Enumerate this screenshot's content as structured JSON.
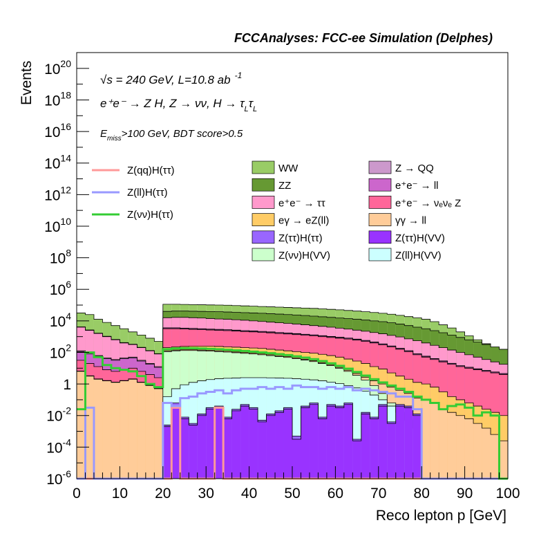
{
  "chart_data": {
    "type": "area",
    "title": "FCCAnalyses: FCC-ee Simulation (Delphes)",
    "xlabel": "Reco lepton p [GeV]",
    "ylabel": "Events",
    "x_range": [
      0,
      100
    ],
    "y_range": [
      1e-06,
      1e+21
    ],
    "y_scale": "log",
    "bin_width": 2,
    "x_ticks": [
      "0",
      "10",
      "20",
      "30",
      "40",
      "50",
      "60",
      "70",
      "80",
      "90",
      "100"
    ],
    "y_ticks": [
      {
        "mant": "10",
        "exp": "-6",
        "value": 1e-06
      },
      {
        "mant": "10",
        "exp": "-4",
        "value": 0.0001
      },
      {
        "mant": "10",
        "exp": "-2",
        "value": 0.01
      },
      {
        "mant": "1",
        "exp": "",
        "value": 1
      },
      {
        "mant": "10",
        "exp": "2",
        "value": 100.0
      },
      {
        "mant": "10",
        "exp": "4",
        "value": 10000.0
      },
      {
        "mant": "10",
        "exp": "6",
        "value": 1000000.0
      },
      {
        "mant": "10",
        "exp": "8",
        "value": 100000000.0
      },
      {
        "mant": "10",
        "exp": "10",
        "value": 10000000000.0
      },
      {
        "mant": "10",
        "exp": "12",
        "value": 1000000000000.0
      },
      {
        "mant": "10",
        "exp": "14",
        "value": 100000000000000.0
      },
      {
        "mant": "10",
        "exp": "16",
        "value": 1e+16
      },
      {
        "mant": "10",
        "exp": "18",
        "value": 1e+18
      },
      {
        "mant": "10",
        "exp": "20",
        "value": 1e+20
      }
    ],
    "annotations": {
      "energy": "√s = 240 GeV, L=10.8 ab",
      "energy_sup": "-1",
      "process": "e⁺e⁻ → Z H, Z → νν, H → τ",
      "process_sub1": "L",
      "process_tau": "τ",
      "process_sub2": "L",
      "cut_pre": "E",
      "cut_sub": "miss",
      "cut_post": ">100 GeV, BDT score>0.5"
    },
    "legend_lines": [
      {
        "name": "Z(qq)H(ττ)",
        "color": "#ff9999"
      },
      {
        "name": "Z(ll)H(ττ)",
        "color": "#9999ff"
      },
      {
        "name": "Z(νν)H(ττ)",
        "color": "#33cc33"
      }
    ],
    "legend_fills": [
      {
        "name": "WW",
        "color": "#99cc66"
      },
      {
        "name": "Z → QQ",
        "color": "#cc99cc"
      },
      {
        "name": "ZZ",
        "color": "#669933"
      },
      {
        "name": "e⁺e⁻ → ll",
        "color": "#cc66cc"
      },
      {
        "name": "e⁺e⁻ → ττ",
        "color": "#ff99cc"
      },
      {
        "name": "e⁺e⁻ → νₑνₑ Z",
        "color": "#ff6699"
      },
      {
        "name": "eγ → eZ(ll)",
        "color": "#ffcc66"
      },
      {
        "name": "γγ → ll",
        "color": "#ffcc99"
      },
      {
        "name": "Z(ττ)H(ττ)",
        "color": "#9966ff"
      },
      {
        "name": "Z(ττ)H(VV)",
        "color": "#9933ff"
      },
      {
        "name": "Z(νν)H(VV)",
        "color": "#ccffcc"
      },
      {
        "name": "Z(ll)H(VV)",
        "color": "#ccffff"
      }
    ],
    "stack_boundaries_log10": [
      {
        "name": "Z(ττ)H(VV)",
        "color": "#9933ff",
        "values": [
          -6,
          -6,
          -6,
          -6,
          -6,
          -6,
          -6,
          -6,
          -6,
          -6,
          -2.7,
          -1.4,
          -2.2,
          -2.6,
          -2,
          -1.6,
          -1.5,
          -2.2,
          -1.7,
          -1.4,
          -1.6,
          -2.4,
          -2,
          -1.8,
          -1.6,
          -3.5,
          -1.5,
          -1.3,
          -2.2,
          -1.4,
          -1.5,
          -1.3,
          -3.6,
          -1.9,
          -2.2,
          -1.4,
          -2.5,
          -1.4,
          -1.5,
          -2,
          -6,
          -6,
          -6,
          -6,
          -6,
          -6,
          -6,
          -6,
          -6,
          -6
        ]
      },
      {
        "name": "Z(ττ)H(ττ)",
        "color": "#9966ff",
        "values": [
          -6,
          -6,
          -6,
          -6,
          -6,
          -6,
          -6,
          -6,
          -6,
          -6,
          -2.6,
          -1.2,
          -2.1,
          -2.5,
          -1.9,
          -1.5,
          -1.4,
          -2.1,
          -1.6,
          -1.3,
          -1.5,
          -2.3,
          -1.9,
          -1.7,
          -1.5,
          -3.3,
          -1.4,
          -1.2,
          -2.1,
          -1.3,
          -1.4,
          -1.2,
          -3.5,
          -1.8,
          -2.1,
          -1.3,
          -2.4,
          -1.3,
          -1.4,
          -1.9,
          -6,
          -6,
          -6,
          -6,
          -6,
          -6,
          -6,
          -6,
          -6,
          -6
        ]
      },
      {
        "name": "Z(ll)H(VV)",
        "color": "#ccffff",
        "values": [
          -6,
          -6,
          -6,
          -6,
          -6,
          -6,
          -6,
          -6,
          -6,
          -6,
          -0.8,
          -0.3,
          -0.05,
          0.1,
          0.2,
          0.28,
          0.33,
          0.36,
          0.38,
          0.4,
          0.4,
          0.4,
          0.39,
          0.38,
          0.36,
          0.33,
          0.3,
          0.26,
          0.2,
          0.12,
          0.02,
          -0.1,
          -0.25,
          -0.45,
          -0.7,
          -1,
          -1.4,
          -1.8,
          -2.3,
          -2.8,
          -6,
          -6,
          -6,
          -6,
          -6,
          -6,
          -6,
          -6,
          -6,
          -6
        ]
      },
      {
        "name": "Z(νν)H(VV)",
        "color": "#ccffcc",
        "values": [
          -6,
          -6,
          -6,
          -6,
          -6,
          -6,
          -6,
          -6,
          -6,
          -6,
          2.05,
          2.1,
          2.12,
          2.12,
          2.1,
          2.08,
          2.05,
          2.02,
          1.98,
          1.94,
          1.9,
          1.85,
          1.8,
          1.74,
          1.68,
          1.6,
          1.52,
          1.42,
          1.3,
          1.16,
          1,
          0.8,
          0.55,
          0.25,
          -0.1,
          -0.6,
          -1.2,
          -1.9,
          -2.5,
          -3,
          -6,
          -6,
          -6,
          -6,
          -6,
          -6,
          -6,
          -6,
          -6,
          -6
        ]
      },
      {
        "name": "γγ → ll",
        "color": "#ffcc99",
        "values": [
          0.8,
          0.5,
          0.3,
          0.2,
          0.1,
          0.2,
          0.3,
          0.1,
          -0.1,
          -0.3,
          2.1,
          2.15,
          2.17,
          2.17,
          2.15,
          2.13,
          2.1,
          2.07,
          2.03,
          1.99,
          1.95,
          1.9,
          1.85,
          1.79,
          1.73,
          1.65,
          1.57,
          1.47,
          1.35,
          1.21,
          1.05,
          0.87,
          0.66,
          0.43,
          0.2,
          0,
          -0.2,
          -0.4,
          -0.6,
          -0.9,
          -1,
          -1.2,
          -1.6,
          -1.8,
          -2,
          -2.2,
          -2.5,
          -2.8,
          -3.2,
          -3.6
        ]
      },
      {
        "name": "eγ → eZ(ll)",
        "color": "#ffcc66",
        "values": [
          0.82,
          0.52,
          0.32,
          0.22,
          0.12,
          0.22,
          0.32,
          0.12,
          -0.08,
          -0.28,
          2.3,
          2.35,
          2.38,
          2.4,
          2.4,
          2.4,
          2.38,
          2.35,
          2.33,
          2.3,
          2.28,
          2.25,
          2.2,
          2.15,
          2.1,
          2.05,
          2,
          1.95,
          1.88,
          1.8,
          1.7,
          1.58,
          1.45,
          1.3,
          1.1,
          0.95,
          0.7,
          0.5,
          0.3,
          0.1,
          0,
          -0.2,
          -0.5,
          -0.8,
          -1,
          -1.2,
          -1.4,
          -1.6,
          -1.8,
          -2
        ]
      },
      {
        "name": "Z(νν)H(ττ)",
        "color": "#33cc33",
        "values": [
          -6,
          -6,
          -6,
          -6,
          -6,
          -6,
          -6,
          -6,
          -6,
          -6,
          2.2,
          2.25,
          2.27,
          2.27,
          2.25,
          2.23,
          2.2,
          2.17,
          2.13,
          2.09,
          2.05,
          2,
          1.95,
          1.89,
          1.83,
          1.75,
          1.67,
          1.57,
          1.45,
          1.31,
          1.15,
          0.97,
          0.76,
          0.53,
          0.3,
          0.1,
          -0.1,
          -0.3,
          -0.5,
          -0.8,
          -6,
          -6,
          -6,
          -6,
          -6,
          -6,
          -6,
          -6,
          -6,
          -6
        ]
      },
      {
        "name": "e⁺e⁻ → νₑνₑ Z",
        "color": "#ff6699",
        "values": [
          1.5,
          1.3,
          1.1,
          0.9,
          0.8,
          0.9,
          1,
          0.8,
          0.6,
          0.4,
          3.5,
          3.5,
          3.48,
          3.46,
          3.44,
          3.42,
          3.4,
          3.38,
          3.35,
          3.32,
          3.3,
          3.27,
          3.24,
          3.2,
          3.17,
          3.13,
          3.09,
          3.05,
          3,
          2.95,
          2.9,
          2.85,
          2.78,
          2.7,
          2.6,
          2.48,
          2.35,
          2.2,
          2.05,
          1.85,
          1.7,
          1.55,
          1.4,
          1.25,
          1.1,
          1,
          0.9,
          0.8,
          0.7,
          0.6
        ]
      },
      {
        "name": "e⁺e⁻ → ll",
        "color": "#cc66cc",
        "values": [
          2.05,
          1.9,
          1.75,
          1.6,
          1.5,
          1.6,
          1.65,
          1.45,
          1.25,
          1.05,
          3.55,
          3.55,
          3.53,
          3.51,
          3.49,
          3.47,
          3.45,
          3.43,
          3.4,
          3.37,
          3.35,
          3.32,
          3.29,
          3.25,
          3.22,
          3.18,
          3.14,
          3.1,
          3.05,
          3,
          2.95,
          2.9,
          2.83,
          2.75,
          2.65,
          2.53,
          2.4,
          2.25,
          2.1,
          1.9,
          1.75,
          1.6,
          1.45,
          1.3,
          1.15,
          1.05,
          0.95,
          0.85,
          0.75,
          0.65
        ]
      },
      {
        "name": "Z → QQ",
        "color": "#cc99cc",
        "values": [
          2.1,
          1.95,
          1.8,
          1.65,
          1.55,
          1.65,
          1.7,
          1.5,
          1.3,
          1.1,
          3.56,
          3.56,
          3.54,
          3.52,
          3.5,
          3.48,
          3.46,
          3.44,
          3.41,
          3.38,
          3.36,
          3.33,
          3.3,
          3.26,
          3.23,
          3.19,
          3.15,
          3.11,
          3.06,
          3.01,
          2.96,
          2.91,
          2.84,
          2.76,
          2.66,
          2.54,
          2.41,
          2.26,
          2.11,
          1.91,
          1.76,
          1.61,
          1.46,
          1.31,
          1.16,
          1.06,
          0.96,
          0.86,
          0.76,
          0.66
        ]
      },
      {
        "name": "e⁺e⁻ → ττ",
        "color": "#ff99cc",
        "values": [
          3.6,
          3.4,
          3.2,
          3,
          2.8,
          2.6,
          2.5,
          2.3,
          2.1,
          1.9,
          4.2,
          4.22,
          4.22,
          4.2,
          4.18,
          4.15,
          4.12,
          4.1,
          4.07,
          4.04,
          4,
          3.96,
          3.92,
          3.88,
          3.84,
          3.8,
          3.75,
          3.7,
          3.65,
          3.6,
          3.54,
          3.48,
          3.41,
          3.34,
          3.26,
          3.18,
          3.08,
          2.98,
          2.86,
          2.74,
          2.6,
          2.45,
          2.3,
          2.15,
          2,
          1.85,
          1.7,
          1.55,
          1.4,
          1.25
        ]
      },
      {
        "name": "ZZ",
        "color": "#669933",
        "values": [
          3.62,
          3.42,
          3.22,
          3.02,
          2.82,
          2.62,
          2.52,
          2.32,
          2.12,
          1.92,
          4.6,
          4.62,
          4.62,
          4.61,
          4.6,
          4.59,
          4.58,
          4.56,
          4.54,
          4.52,
          4.5,
          4.48,
          4.45,
          4.43,
          4.4,
          4.37,
          4.34,
          4.3,
          4.26,
          4.22,
          4.18,
          4.14,
          4.1,
          4.05,
          4,
          3.95,
          3.88,
          3.8,
          3.7,
          3.6,
          3.5,
          3.38,
          3.25,
          3.1,
          2.95,
          2.8,
          2.65,
          2.5,
          2.35,
          2.2
        ]
      },
      {
        "name": "WW",
        "color": "#99cc66",
        "values": [
          4.5,
          4.4,
          4.1,
          3.9,
          3.7,
          3.5,
          3.3,
          3.1,
          2.9,
          2.7,
          5.05,
          5.05,
          5.04,
          5.03,
          5.02,
          5.01,
          5,
          4.99,
          4.97,
          4.95,
          4.93,
          4.91,
          4.89,
          4.87,
          4.85,
          4.83,
          4.81,
          4.79,
          4.76,
          4.73,
          4.7,
          4.66,
          4.62,
          4.58,
          4.53,
          4.48,
          4.42,
          4.35,
          4.27,
          4.19,
          4.1,
          3.95,
          3.75,
          3.55,
          3.3,
          3.05,
          2.8,
          2.55,
          2.3,
          2
        ]
      }
    ],
    "signal_lines_log10": [
      {
        "name": "Z(qq)H(ττ)",
        "color": "#ff9999",
        "values": [
          -6,
          -6,
          -6,
          -6,
          -6,
          -6,
          -6,
          -6,
          -6,
          -6,
          -6,
          -1.5,
          -6,
          -6,
          -6,
          -6,
          -1.5,
          -6,
          -6,
          -6,
          -6,
          -6,
          -6,
          -6,
          -6,
          -6,
          -6,
          -6,
          -6,
          -6,
          -6,
          -6,
          -6,
          -6,
          -6,
          -6,
          -6,
          -6,
          -6,
          -6,
          -6,
          -6,
          -6,
          -6,
          -6,
          -6,
          -6,
          -6,
          -6,
          -6
        ]
      },
      {
        "name": "Z(ll)H(ττ)",
        "color": "#9999ff",
        "values": [
          -6,
          -1.5,
          -6,
          -6,
          -6,
          -6,
          -6,
          -6,
          -6,
          -6,
          -1.2,
          -1.4,
          -0.9,
          -0.8,
          -0.6,
          -0.5,
          -0.4,
          -0.6,
          -0.4,
          -0.3,
          -0.3,
          -0.2,
          -0.3,
          -0.2,
          -0.3,
          -0.1,
          -0.2,
          -0.2,
          -0.3,
          -0.2,
          -0.3,
          -0.2,
          -0.4,
          -0.3,
          -0.4,
          -0.5,
          -0.6,
          -0.8,
          -0.8,
          -1.6,
          -6,
          -6,
          -6,
          -6,
          -6,
          -6,
          -6,
          -6,
          -6,
          -6
        ]
      },
      {
        "name": "Z(νν)H(ττ)",
        "color": "#33cc33",
        "values": [
          -1.6,
          2,
          1.7,
          1.2,
          1,
          0.9,
          0.8,
          0.5,
          0,
          -0.2,
          2.2,
          2.25,
          2.27,
          2.27,
          2.25,
          2.23,
          2.2,
          2.17,
          2.13,
          2.09,
          2.05,
          2,
          1.95,
          1.89,
          1.83,
          1.75,
          1.67,
          1.57,
          1.45,
          1.31,
          1.15,
          0.97,
          0.76,
          0.53,
          0.3,
          0.1,
          -0.1,
          -0.3,
          -0.5,
          -0.8,
          -1,
          -1.2,
          -1.6,
          -1.4,
          -1.3,
          -1.5,
          -2,
          -1.8,
          -2,
          -6
        ]
      }
    ]
  }
}
